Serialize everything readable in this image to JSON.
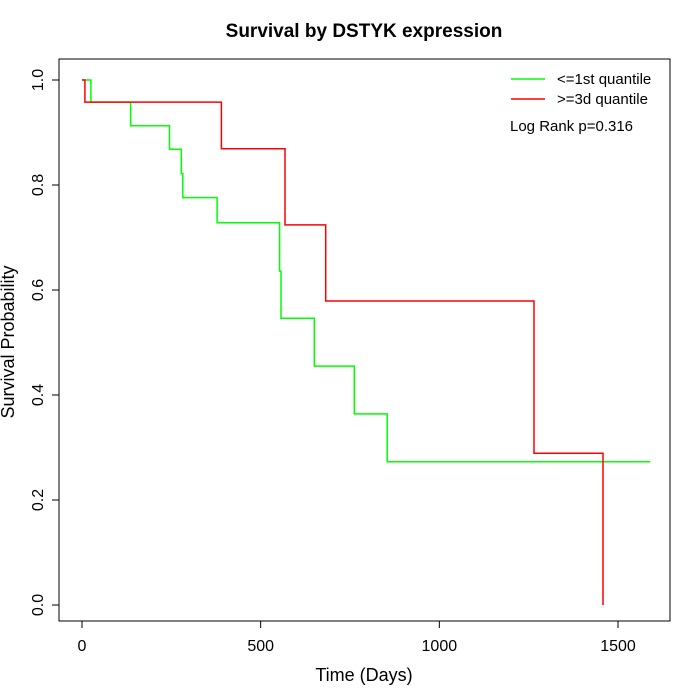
{
  "chart_data": {
    "type": "line",
    "title": "Survival by DSTYK expression",
    "xlabel": "Time (Days)",
    "ylabel": "Survival Probability",
    "xlim": [
      0,
      1590
    ],
    "ylim": [
      0,
      1
    ],
    "x_ticks": [
      0,
      500,
      1000,
      1500
    ],
    "y_ticks": [
      "0.0",
      "0.2",
      "0.4",
      "0.6",
      "0.8",
      "1.0"
    ],
    "legend_position": "top-right",
    "annotation": "Log Rank p=0.316",
    "series": [
      {
        "name": "<=1st quantile",
        "color": "#00ff00",
        "steps": [
          [
            0,
            1.0
          ],
          [
            25,
            0.958
          ],
          [
            136,
            0.913
          ],
          [
            245,
            0.868
          ],
          [
            278,
            0.822
          ],
          [
            282,
            0.776
          ],
          [
            378,
            0.728
          ],
          [
            553,
            0.636
          ],
          [
            557,
            0.546
          ],
          [
            650,
            0.455
          ],
          [
            762,
            0.364
          ],
          [
            854,
            0.273
          ],
          [
            1590,
            0.273
          ]
        ]
      },
      {
        "name": ">=3d quantile",
        "color": "#ff0000",
        "steps": [
          [
            0,
            1.0
          ],
          [
            8,
            0.958
          ],
          [
            390,
            0.869
          ],
          [
            568,
            0.724
          ],
          [
            682,
            0.579
          ],
          [
            1265,
            0.289
          ],
          [
            1458,
            0.0
          ]
        ]
      }
    ]
  }
}
